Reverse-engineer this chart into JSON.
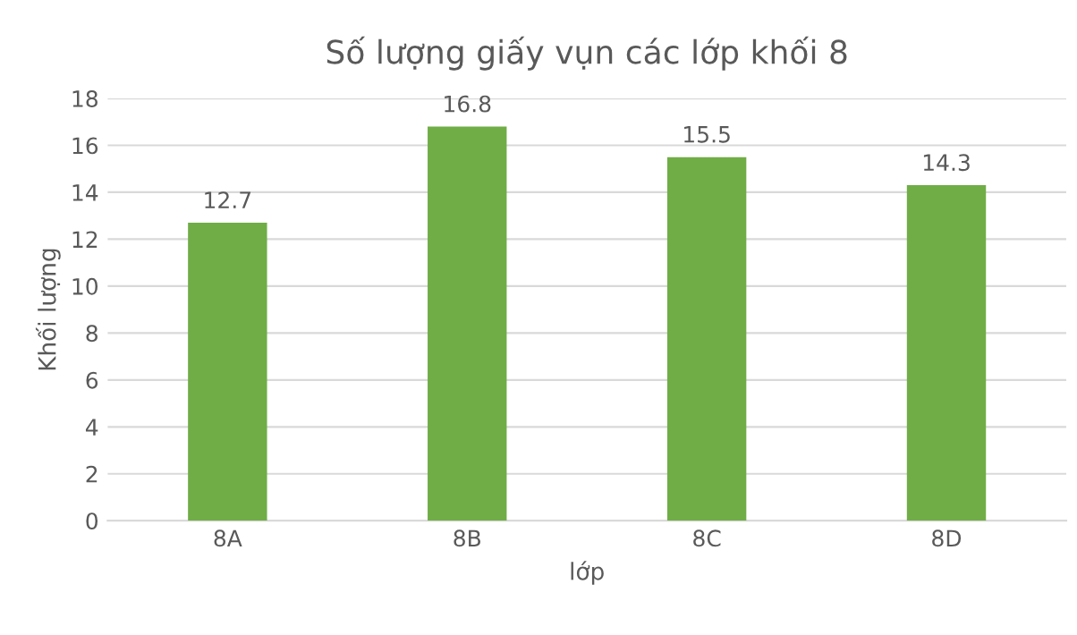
{
  "chart_data": {
    "type": "bar",
    "title": "Số lượng giấy vụn các lớp khối 8",
    "xlabel": "lớp",
    "ylabel": "Khối lượng",
    "categories": [
      "8A",
      "8B",
      "8C",
      "8D"
    ],
    "values": [
      12.7,
      16.8,
      15.5,
      14.3
    ],
    "color": "#70ad47",
    "ylim": [
      0,
      18
    ],
    "yticks": [
      0,
      2,
      4,
      6,
      8,
      10,
      12,
      14,
      16,
      18
    ],
    "grid": "y",
    "data_labels": true
  }
}
